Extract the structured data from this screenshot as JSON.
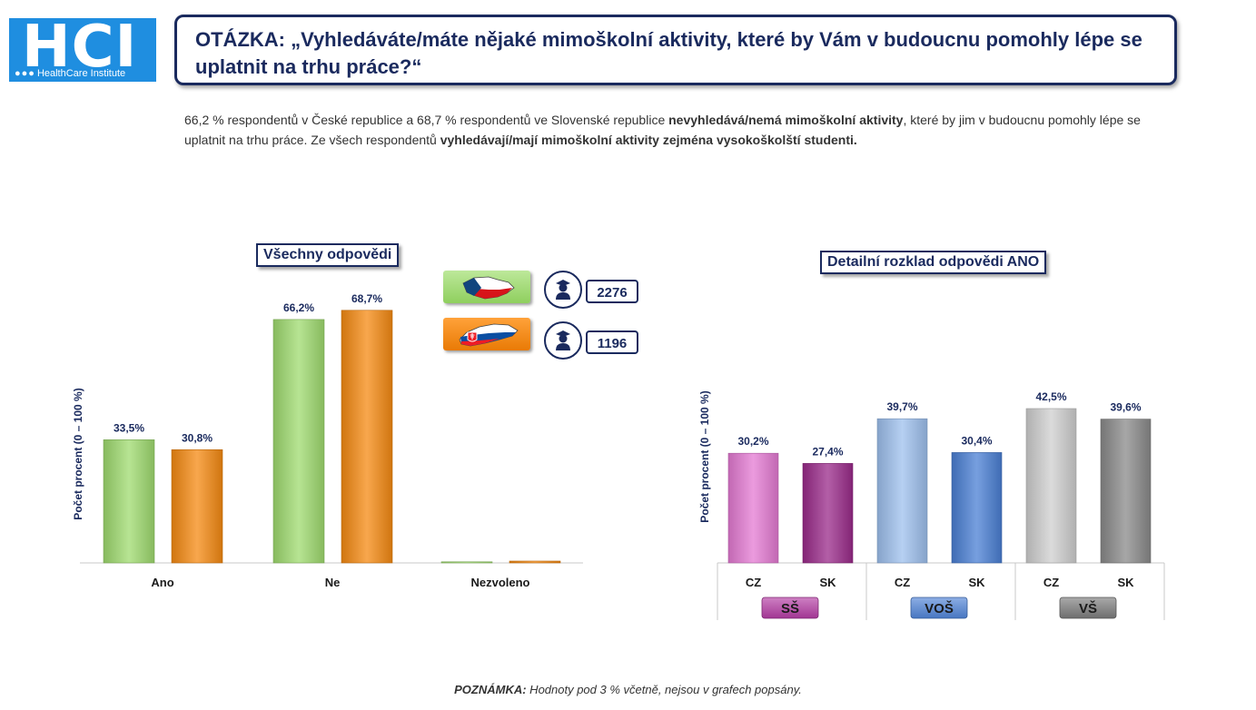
{
  "logo": {
    "mark": "HCI",
    "sub": "HealthCare Institute"
  },
  "question": "OTÁZKA: „Vyhledáváte/máte nějaké mimoškolní aktivity, které by Vám v budoucnu pomohly lépe se uplatnit na trhu práce?“",
  "summary": {
    "p1": "66,2 % respondentů v České republice a 68,7 % respondentů ve Slovenské republice ",
    "b1": "nevyhledává/nemá mimoškolní aktivity",
    "p2": ", které by jim v budoucnu pomohly lépe se uplatnit na trhu práce. Ze všech respondentů ",
    "b2": "vyhledávají/mají mimoškolní aktivity zejména vysokoškolští studenti."
  },
  "legend": [
    {
      "country": "CZ",
      "count": "2276",
      "color": "#9fdb6f"
    },
    {
      "country": "SK",
      "count": "1196",
      "color": "#f58a12"
    }
  ],
  "note": {
    "bold": "POZNÁMKA:",
    "text": " Hodnoty pod 3 % včetně, nejsou v grafech popsány."
  },
  "colors": {
    "accent": "#1a2a5e",
    "logo": "#1f8ee0"
  },
  "chart_data": [
    {
      "type": "bar",
      "title": "Všechny odpovědi",
      "ylabel": "Počet procent  (0 – 100 %)",
      "ylim": [
        0,
        100
      ],
      "categories": [
        "Ano",
        "Ne",
        "Nezvoleno"
      ],
      "series": [
        {
          "name": "CZ",
          "values": [
            33.5,
            66.2,
            0.3
          ],
          "labels": [
            "33,5%",
            "66,2%",
            ""
          ]
        },
        {
          "name": "SK",
          "values": [
            30.8,
            68.7,
            0.5
          ],
          "labels": [
            "30,8%",
            "68,7%",
            ""
          ]
        }
      ]
    },
    {
      "type": "bar",
      "title": "Detailní rozklad odpovědi ANO",
      "ylabel": "Počet procent  (0 – 100 %)",
      "ylim": [
        0,
        100
      ],
      "groups": [
        {
          "name": "SŠ",
          "color": "#b33ca3",
          "bars": [
            {
              "label": "CZ",
              "value": 30.2,
              "text": "30,2%",
              "color": "#e47ad3"
            },
            {
              "label": "SK",
              "value": 27.4,
              "text": "27,4%",
              "color": "#9a2a8a"
            }
          ]
        },
        {
          "name": "VOŠ",
          "color": "#4f83d6",
          "bars": [
            {
              "label": "CZ",
              "value": 39.7,
              "text": "39,7%",
              "color": "#9ec0ee"
            },
            {
              "label": "SK",
              "value": 30.4,
              "text": "30,4%",
              "color": "#4a7fd4"
            }
          ]
        },
        {
          "name": "VŠ",
          "color": "#7a7a7a",
          "bars": [
            {
              "label": "CZ",
              "value": 42.5,
              "text": "42,5%",
              "color": "#cfcfcf"
            },
            {
              "label": "SK",
              "value": 39.6,
              "text": "39,6%",
              "color": "#8a8a8a"
            }
          ]
        }
      ]
    }
  ]
}
